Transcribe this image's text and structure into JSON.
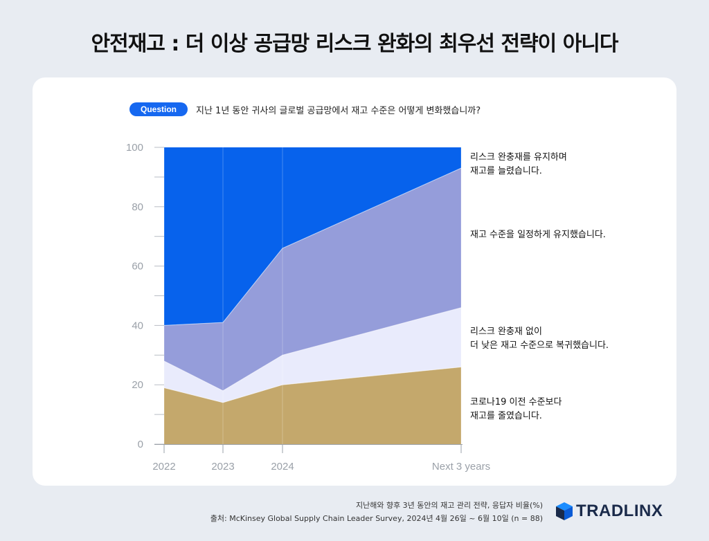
{
  "title": "안전재고 : 더 이상 공급망 리스크 완화의 최우선 전략이 아니다",
  "question": {
    "badge": "Question",
    "text": "지난 1년 동안 귀사의 글로벌 공급망에서 재고 수준은 어떻게 변화했습니까?"
  },
  "chart_data": {
    "type": "area",
    "stacked": true,
    "x": [
      "2022",
      "2023",
      "2024",
      "Next 3 years"
    ],
    "y_ticks": [
      0,
      20,
      40,
      60,
      80,
      100
    ],
    "ylim": [
      0,
      100
    ],
    "series": [
      {
        "name": "코로나19 이전 수준보다\n재고를 줄였습니다.",
        "values": [
          19,
          14,
          20,
          26
        ],
        "color": "#c4a86c"
      },
      {
        "name": "리스크 완충재 없이\n더 낮은 재고 수준으로 복귀했습니다.",
        "values": [
          9,
          4,
          10,
          20
        ],
        "color": "#e9ebfc"
      },
      {
        "name": "재고 수준을 일정하게 유지했습니다.",
        "values": [
          12,
          23,
          36,
          47
        ],
        "color": "#959dda"
      },
      {
        "name": "리스크 완충재를 유지하며\n재고를 늘렸습니다.",
        "values": [
          60,
          59,
          34,
          7
        ],
        "color": "#0762ec"
      }
    ]
  },
  "footer": {
    "line1": "지난해와 향후 3년 동안의 재고 관리 전략, 응답자 비율(%)",
    "line2": "출처: McKinsey Global Supply Chain Leader Survey, 2024년 4월 26일 ~ 6월 10일 (n = 88)"
  },
  "brand": {
    "name": "TRADLINX",
    "color": "#1a2a4a",
    "accent": "#1a8cff"
  }
}
